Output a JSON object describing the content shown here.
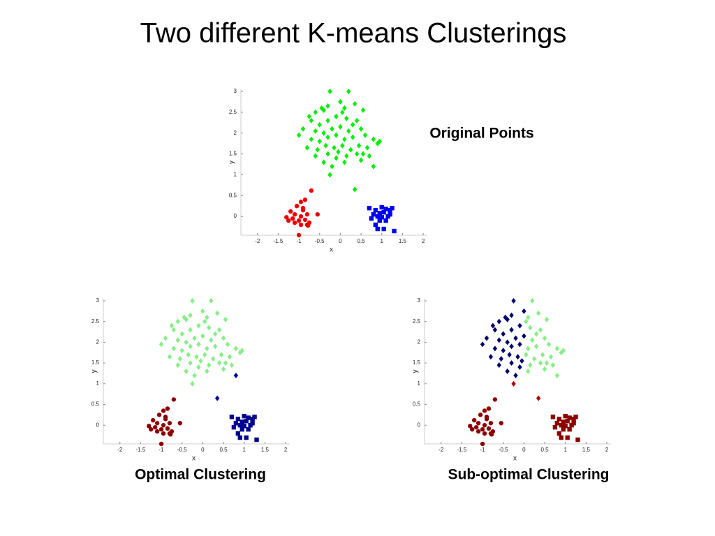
{
  "title": "Two different K-means Clusterings",
  "chart_data": [
    {
      "type": "scatter",
      "title": "Original Points",
      "xlabel": "x",
      "ylabel": "y",
      "xlim": [
        -2.4,
        2.1
      ],
      "ylim": [
        -0.45,
        3.05
      ],
      "xticks": [
        -2,
        -1.5,
        -1,
        -0.5,
        0,
        0.5,
        1,
        1.5,
        2
      ],
      "yticks": [
        0,
        0.5,
        1,
        1.5,
        2,
        2.5,
        3
      ],
      "series": [
        {
          "color": "#00ee00",
          "marker": "diamond",
          "x": [
            -0.25,
            0,
            -0.6,
            -0.4,
            -0.3,
            -0.7,
            -0.5,
            -0.3,
            -0.1,
            -0.9,
            -0.6,
            -0.4,
            -0.2,
            0,
            -1.0,
            -0.7,
            -0.5,
            -0.3,
            -0.1,
            -0.8,
            -0.55,
            -0.35,
            -0.15,
            -0.6,
            -0.3,
            -0.1,
            -0.4,
            -0.2,
            -0.45,
            -0.75,
            -0.05,
            0.2,
            0.1,
            0.35,
            0.55,
            0.15,
            0.4,
            0.2,
            0.5,
            0.1,
            0.3,
            0.6,
            0.8,
            0.05,
            0.25,
            0.45,
            0.65,
            0.9,
            0.15,
            0.4,
            0.7,
            0.1,
            0.5,
            0.3,
            0.55,
            0.95,
            0.05,
            0.35,
            -0.25,
            0.8
          ],
          "y": [
            3.0,
            2.75,
            2.5,
            2.55,
            2.65,
            2.3,
            2.2,
            2.3,
            2.4,
            2.1,
            2.05,
            2.0,
            2.1,
            2.15,
            1.95,
            1.85,
            1.8,
            1.9,
            1.95,
            1.65,
            1.6,
            1.7,
            1.65,
            1.45,
            1.5,
            1.4,
            1.3,
            1.2,
            2.6,
            2.4,
            1.55,
            3.0,
            2.6,
            2.7,
            2.55,
            2.35,
            2.3,
            2.05,
            2.1,
            1.85,
            1.9,
            1.95,
            1.85,
            1.7,
            1.6,
            1.7,
            1.65,
            1.75,
            1.45,
            1.5,
            1.45,
            1.3,
            1.35,
            2.2,
            1.5,
            1.8,
            2.5,
            0.65,
            1.0,
            1.2
          ]
        },
        {
          "color": "#ee0000",
          "marker": "circle",
          "x": [
            -0.7,
            -0.95,
            -0.85,
            -1.05,
            -0.9,
            -1.2,
            -0.55,
            -1.1,
            -0.95,
            -0.8,
            -1.15,
            -1.0,
            -0.85,
            -1.25,
            -0.75,
            -1.1,
            -0.8,
            -0.95,
            -1.0,
            -0.9,
            -1.3,
            -0.78
          ],
          "y": [
            0.62,
            0.35,
            0.4,
            0.25,
            0.15,
            0.12,
            0.05,
            0.05,
            0.0,
            0.05,
            -0.05,
            -0.1,
            -0.08,
            -0.1,
            -0.15,
            -0.15,
            -0.2,
            -0.2,
            -0.45,
            0.2,
            -0.02,
            -0.22
          ]
        },
        {
          "color": "#0000ee",
          "marker": "square",
          "x": [
            0.7,
            0.85,
            1.0,
            1.1,
            1.25,
            0.8,
            0.95,
            1.05,
            1.2,
            0.9,
            1.0,
            1.15,
            0.75,
            0.95,
            1.1,
            0.85,
            1.05,
            1.3,
            0.9,
            1.2
          ],
          "y": [
            0.2,
            0.15,
            0.22,
            0.18,
            0.2,
            0.05,
            0.08,
            0.1,
            0.05,
            0.0,
            -0.02,
            0.0,
            -0.05,
            -0.1,
            -0.1,
            -0.2,
            -0.3,
            -0.35,
            -0.3,
            0.15
          ]
        }
      ]
    },
    {
      "type": "scatter",
      "title": "Optimal Clustering",
      "xlabel": "x",
      "ylabel": "y",
      "xlim": [
        -2.4,
        2.1
      ],
      "ylim": [
        -0.45,
        3.05
      ],
      "xticks": [
        -2,
        -1.5,
        -1,
        -0.5,
        0,
        0.5,
        1,
        1.5,
        2
      ],
      "yticks": [
        0,
        0.5,
        1,
        1.5,
        2,
        2.5,
        3
      ],
      "series": [
        {
          "color": "#88ee88",
          "marker": "diamond",
          "x": [
            -0.25,
            0,
            -0.6,
            -0.4,
            -0.3,
            -0.7,
            -0.5,
            -0.3,
            -0.1,
            -0.9,
            -0.6,
            -0.4,
            -0.2,
            0,
            -1.0,
            -0.7,
            -0.5,
            -0.3,
            -0.1,
            -0.8,
            -0.55,
            -0.35,
            -0.15,
            -0.6,
            -0.3,
            -0.1,
            -0.4,
            -0.2,
            -0.45,
            -0.75,
            -0.05,
            0.2,
            0.1,
            0.35,
            0.55,
            0.15,
            0.4,
            0.2,
            0.5,
            0.1,
            0.3,
            0.6,
            0.8,
            0.05,
            0.25,
            0.45,
            0.65,
            0.9,
            0.15,
            0.4,
            0.7,
            0.1,
            0.5,
            0.3,
            0.55,
            0.95,
            0.05,
            -0.25
          ],
          "y": [
            3.0,
            2.75,
            2.5,
            2.55,
            2.65,
            2.3,
            2.2,
            2.3,
            2.4,
            2.1,
            2.05,
            2.0,
            2.1,
            2.15,
            1.95,
            1.85,
            1.8,
            1.9,
            1.95,
            1.65,
            1.6,
            1.7,
            1.65,
            1.45,
            1.5,
            1.4,
            1.3,
            1.2,
            2.6,
            2.4,
            1.55,
            3.0,
            2.6,
            2.7,
            2.55,
            2.35,
            2.3,
            2.05,
            2.1,
            1.85,
            1.9,
            1.95,
            1.85,
            1.7,
            1.6,
            1.7,
            1.65,
            1.75,
            1.45,
            1.5,
            1.45,
            1.3,
            1.35,
            2.2,
            1.5,
            1.8,
            2.5,
            1.0
          ]
        },
        {
          "color": "#000090",
          "marker": "diamond",
          "x": [
            0.35,
            0.8
          ],
          "y": [
            0.65,
            1.2
          ]
        },
        {
          "color": "#8b0000",
          "marker": "circle",
          "x": [
            -0.7,
            -0.95,
            -0.85,
            -1.05,
            -0.9,
            -1.2,
            -0.55,
            -1.1,
            -0.95,
            -0.8,
            -1.15,
            -1.0,
            -0.85,
            -1.25,
            -0.75,
            -1.1,
            -0.8,
            -0.95,
            -1.0,
            -0.9,
            -1.3,
            -0.78
          ],
          "y": [
            0.62,
            0.35,
            0.4,
            0.25,
            0.15,
            0.12,
            0.05,
            0.05,
            0.0,
            0.05,
            -0.05,
            -0.1,
            -0.08,
            -0.1,
            -0.15,
            -0.15,
            -0.2,
            -0.2,
            -0.45,
            0.2,
            -0.02,
            -0.22
          ]
        },
        {
          "color": "#000090",
          "marker": "square",
          "x": [
            0.7,
            0.85,
            1.0,
            1.1,
            1.25,
            0.8,
            0.95,
            1.05,
            1.2,
            0.9,
            1.0,
            1.15,
            0.75,
            0.95,
            1.1,
            0.85,
            1.05,
            1.3,
            0.9,
            1.2
          ],
          "y": [
            0.2,
            0.15,
            0.22,
            0.18,
            0.2,
            0.05,
            0.08,
            0.1,
            0.05,
            0.0,
            -0.02,
            0.0,
            -0.05,
            -0.1,
            -0.1,
            -0.2,
            -0.3,
            -0.35,
            -0.3,
            0.15
          ]
        }
      ]
    },
    {
      "type": "scatter",
      "title": "Sub-optimal Clustering",
      "xlabel": "x",
      "ylabel": "y",
      "xlim": [
        -2.4,
        2.1
      ],
      "ylim": [
        -0.45,
        3.05
      ],
      "xticks": [
        -2,
        -1.5,
        -1,
        -0.5,
        0,
        0.5,
        1,
        1.5,
        2
      ],
      "yticks": [
        0,
        0.5,
        1,
        1.5,
        2,
        2.5,
        3
      ],
      "series": [
        {
          "color": "#000070",
          "marker": "diamond",
          "x": [
            -0.25,
            0,
            -0.6,
            -0.4,
            -0.3,
            -0.7,
            -0.5,
            -0.3,
            -0.1,
            -0.9,
            -0.6,
            -0.4,
            -0.2,
            0,
            -1.0,
            -0.7,
            -0.5,
            -0.3,
            -0.1,
            -0.8,
            -0.55,
            -0.35,
            -0.15,
            -0.6,
            -0.3,
            -0.1,
            -0.4,
            -0.2,
            -0.45,
            -0.75,
            -0.05
          ],
          "y": [
            3.0,
            2.75,
            2.5,
            2.55,
            2.65,
            2.3,
            2.2,
            2.3,
            2.4,
            2.1,
            2.05,
            2.0,
            2.1,
            2.15,
            1.95,
            1.85,
            1.8,
            1.9,
            1.95,
            1.65,
            1.6,
            1.7,
            1.65,
            1.45,
            1.5,
            1.4,
            1.3,
            1.2,
            2.6,
            2.4,
            1.55
          ]
        },
        {
          "color": "#88ee88",
          "marker": "diamond",
          "x": [
            0.2,
            0.1,
            0.35,
            0.55,
            0.15,
            0.4,
            0.2,
            0.5,
            0.1,
            0.3,
            0.6,
            0.8,
            0.05,
            0.25,
            0.45,
            0.65,
            0.9,
            0.15,
            0.4,
            0.7,
            0.1,
            0.5,
            0.3,
            0.55,
            0.95,
            0.05,
            0.8
          ],
          "y": [
            3.0,
            2.6,
            2.7,
            2.55,
            2.35,
            2.3,
            2.05,
            2.1,
            1.85,
            1.9,
            1.95,
            1.85,
            1.7,
            1.6,
            1.7,
            1.65,
            1.75,
            1.45,
            1.5,
            1.45,
            1.3,
            1.35,
            2.2,
            1.5,
            1.8,
            2.5,
            1.2
          ]
        },
        {
          "color": "#b00000",
          "marker": "diamond",
          "x": [
            0.35,
            -0.25
          ],
          "y": [
            0.65,
            1.0
          ]
        },
        {
          "color": "#8b0000",
          "marker": "circle",
          "x": [
            -0.7,
            -0.95,
            -0.85,
            -1.05,
            -0.9,
            -1.2,
            -0.55,
            -1.1,
            -0.95,
            -0.8,
            -1.15,
            -1.0,
            -0.85,
            -1.25,
            -0.75,
            -1.1,
            -0.8,
            -0.95,
            -1.0,
            -0.9,
            -1.3,
            -0.78
          ],
          "y": [
            0.62,
            0.35,
            0.4,
            0.25,
            0.15,
            0.12,
            0.05,
            0.05,
            0.0,
            0.05,
            -0.05,
            -0.1,
            -0.08,
            -0.1,
            -0.15,
            -0.15,
            -0.2,
            -0.2,
            -0.45,
            0.2,
            -0.02,
            -0.22
          ]
        },
        {
          "color": "#8b0000",
          "marker": "square",
          "x": [
            0.7,
            0.85,
            1.0,
            1.1,
            1.25,
            0.8,
            0.95,
            1.05,
            1.2,
            0.9,
            1.0,
            1.15,
            0.75,
            0.95,
            1.1,
            0.85,
            1.05,
            1.3,
            0.9,
            1.2
          ],
          "y": [
            0.2,
            0.15,
            0.22,
            0.18,
            0.2,
            0.05,
            0.08,
            0.1,
            0.05,
            0.0,
            -0.02,
            0.0,
            -0.05,
            -0.1,
            -0.1,
            -0.2,
            -0.3,
            -0.35,
            -0.3,
            0.15
          ]
        }
      ]
    }
  ]
}
